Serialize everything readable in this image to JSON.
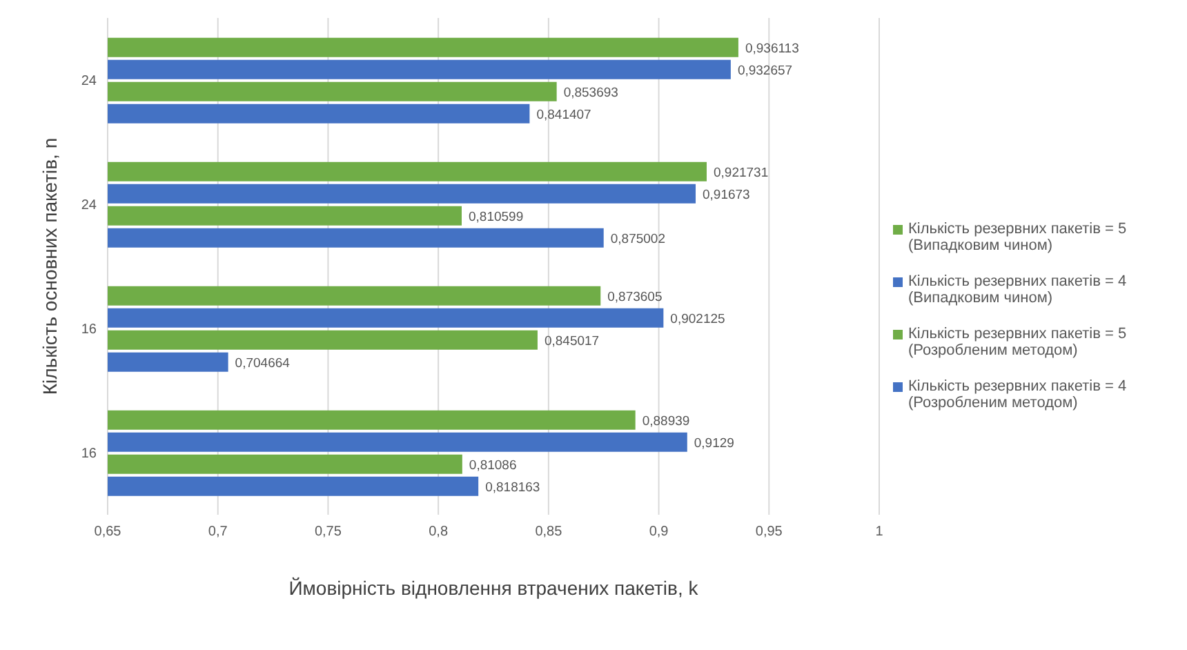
{
  "chart_data": {
    "type": "bar",
    "orientation": "horizontal",
    "xlabel": "Ймовірність відновлення втрачених пакетів, k",
    "ylabel": "Кількість основних пакетів, n",
    "categories": [
      "24",
      "24",
      "16",
      "16"
    ],
    "series": [
      {
        "name": "Кількість резервних пакетів = 5 (Випадковим чином)",
        "color": "#70ad47",
        "values": [
          0.936113,
          0.921731,
          0.873605,
          0.88939
        ],
        "value_labels": [
          "0,936113",
          "0,921731",
          "0,873605",
          "0,88939"
        ]
      },
      {
        "name": "Кількість резервних пакетів = 4 (Випадковим чином)",
        "color": "#4472c4",
        "values": [
          0.932657,
          0.91673,
          0.902125,
          0.9129
        ],
        "value_labels": [
          "0,932657",
          "0,91673",
          "0,902125",
          "0,9129"
        ]
      },
      {
        "name": "Кількість резервних пакетів = 5 (Розробленим методом)",
        "color": "#70ad47",
        "values": [
          0.853693,
          0.810599,
          0.845017,
          0.81086
        ],
        "value_labels": [
          "0,853693",
          "0,810599",
          "0,845017",
          "0,81086"
        ]
      },
      {
        "name": "Кількість резервних пакетів = 4 (Розробленим методом)",
        "color": "#4472c4",
        "values": [
          0.841407,
          0.875002,
          0.704664,
          0.818163
        ],
        "value_labels": [
          "0,841407",
          "0,875002",
          "0,704664",
          "0,818163"
        ]
      }
    ],
    "xlim": [
      0.65,
      1
    ],
    "xticks": [
      {
        "value": 0.65,
        "label": "0,65"
      },
      {
        "value": 0.7,
        "label": "0,7"
      },
      {
        "value": 0.75,
        "label": "0,75"
      },
      {
        "value": 0.8,
        "label": "0,8"
      },
      {
        "value": 0.85,
        "label": "0,85"
      },
      {
        "value": 0.9,
        "label": "0,9"
      },
      {
        "value": 0.95,
        "label": "0,95"
      },
      {
        "value": 1,
        "label": "1"
      }
    ],
    "grid": "x",
    "legend": "right"
  }
}
